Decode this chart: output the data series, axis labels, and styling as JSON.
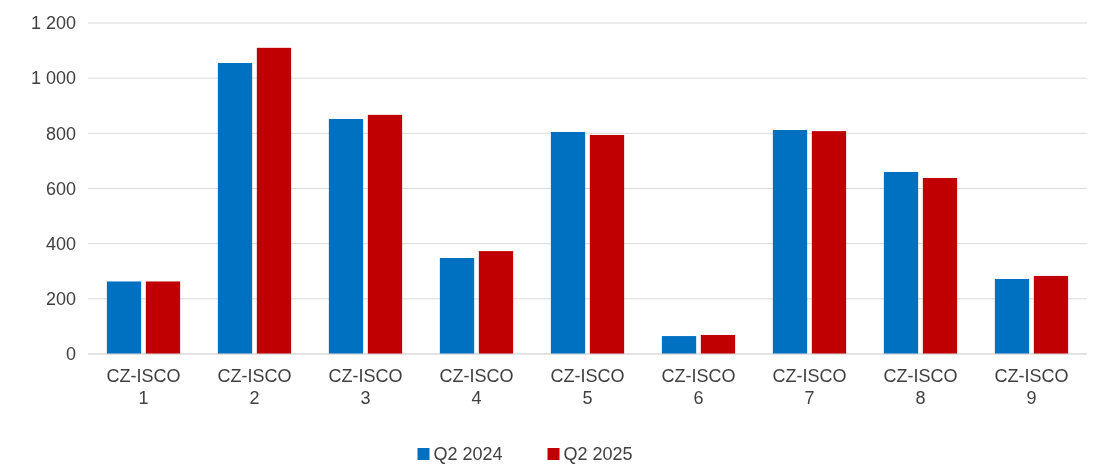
{
  "chart_data": {
    "type": "bar",
    "categories": [
      "CZ-ISCO 1",
      "CZ-ISCO 2",
      "CZ-ISCO 3",
      "CZ-ISCO 4",
      "CZ-ISCO 5",
      "CZ-ISCO 6",
      "CZ-ISCO 7",
      "CZ-ISCO 8",
      "CZ-ISCO 9"
    ],
    "series": [
      {
        "name": "Q2 2024",
        "color": "#0070c0",
        "values": [
          263,
          1055,
          852,
          348,
          805,
          65,
          812,
          660,
          272
        ]
      },
      {
        "name": "Q2 2025",
        "color": "#c00000",
        "values": [
          263,
          1110,
          867,
          373,
          794,
          69,
          808,
          638,
          283
        ]
      }
    ],
    "ylim": [
      0,
      1200
    ],
    "yticks": [
      0,
      200,
      400,
      600,
      800,
      {
        "value": 1000,
        "label": "1 000"
      },
      {
        "value": 1200,
        "label": "1 200"
      }
    ],
    "grid": "y",
    "legend": "bottom"
  }
}
